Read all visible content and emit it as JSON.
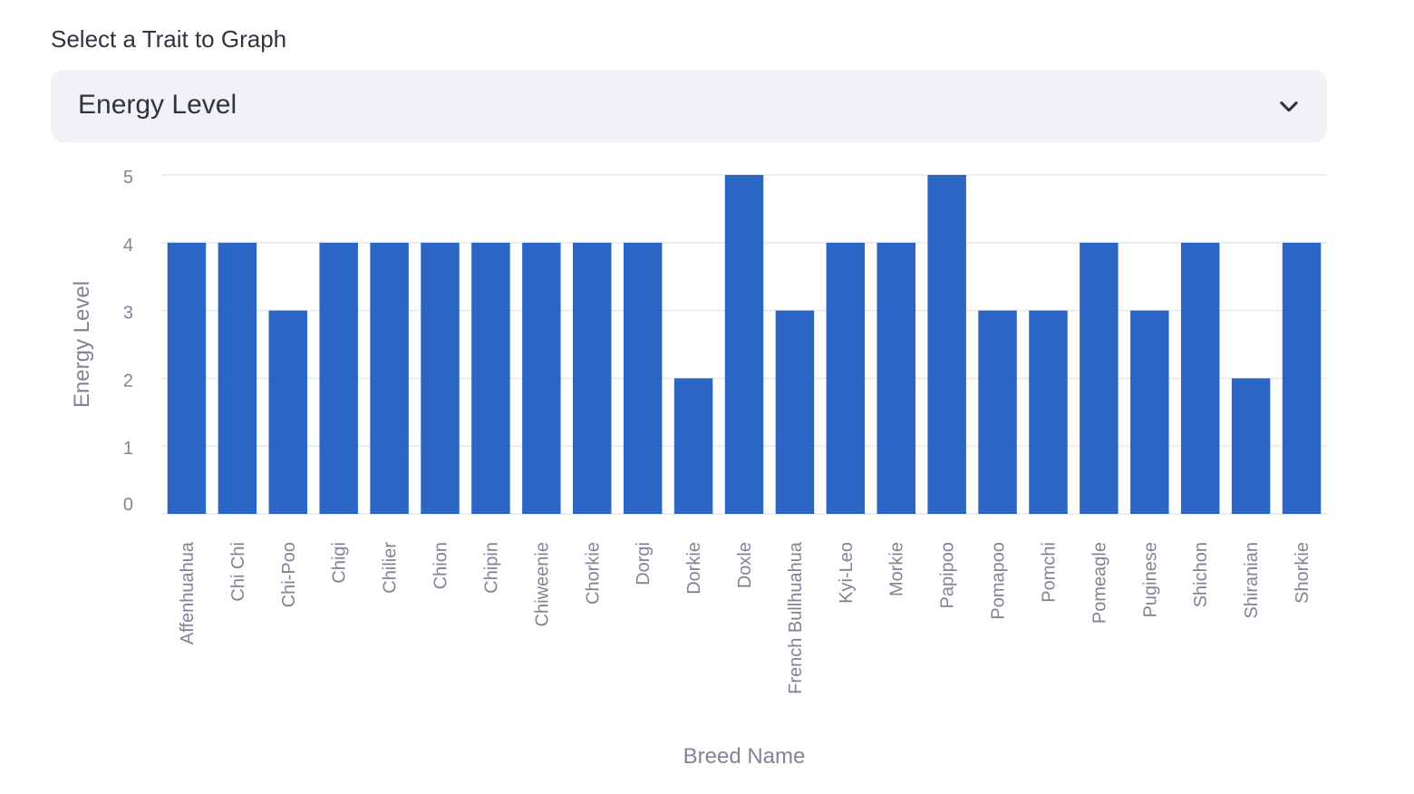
{
  "select": {
    "label": "Select a Trait to Graph",
    "value": "Energy Level",
    "icon": "chevron-down-icon"
  },
  "colors": {
    "bar": "#2c66c4",
    "grid": "#e6e9ef",
    "axis_text": "#808495",
    "select_bg": "#f0f2f6",
    "text": "#31333f"
  },
  "chart_data": {
    "type": "bar",
    "categories": [
      "Affenhuahua",
      "Chi Chi",
      "Chi-Poo",
      "Chigi",
      "Chilier",
      "Chion",
      "Chipin",
      "Chiweenie",
      "Chorkie",
      "Dorgi",
      "Dorkie",
      "Doxle",
      "French Bullhuahua",
      "Kyi-Leo",
      "Morkie",
      "Papipoo",
      "Pomapoo",
      "Pomchi",
      "Pomeagle",
      "Puginese",
      "Shichon",
      "Shiranian",
      "Shorkie"
    ],
    "values": [
      4,
      4,
      3,
      4,
      4,
      4,
      4,
      4,
      4,
      4,
      2,
      5,
      3,
      4,
      4,
      5,
      3,
      3,
      4,
      3,
      4,
      2,
      4
    ],
    "xlabel": "Breed Name",
    "ylabel": "Energy Level",
    "ylim": [
      0,
      5
    ],
    "yticks": [
      0,
      1,
      2,
      3,
      4,
      5
    ],
    "grid": true
  }
}
